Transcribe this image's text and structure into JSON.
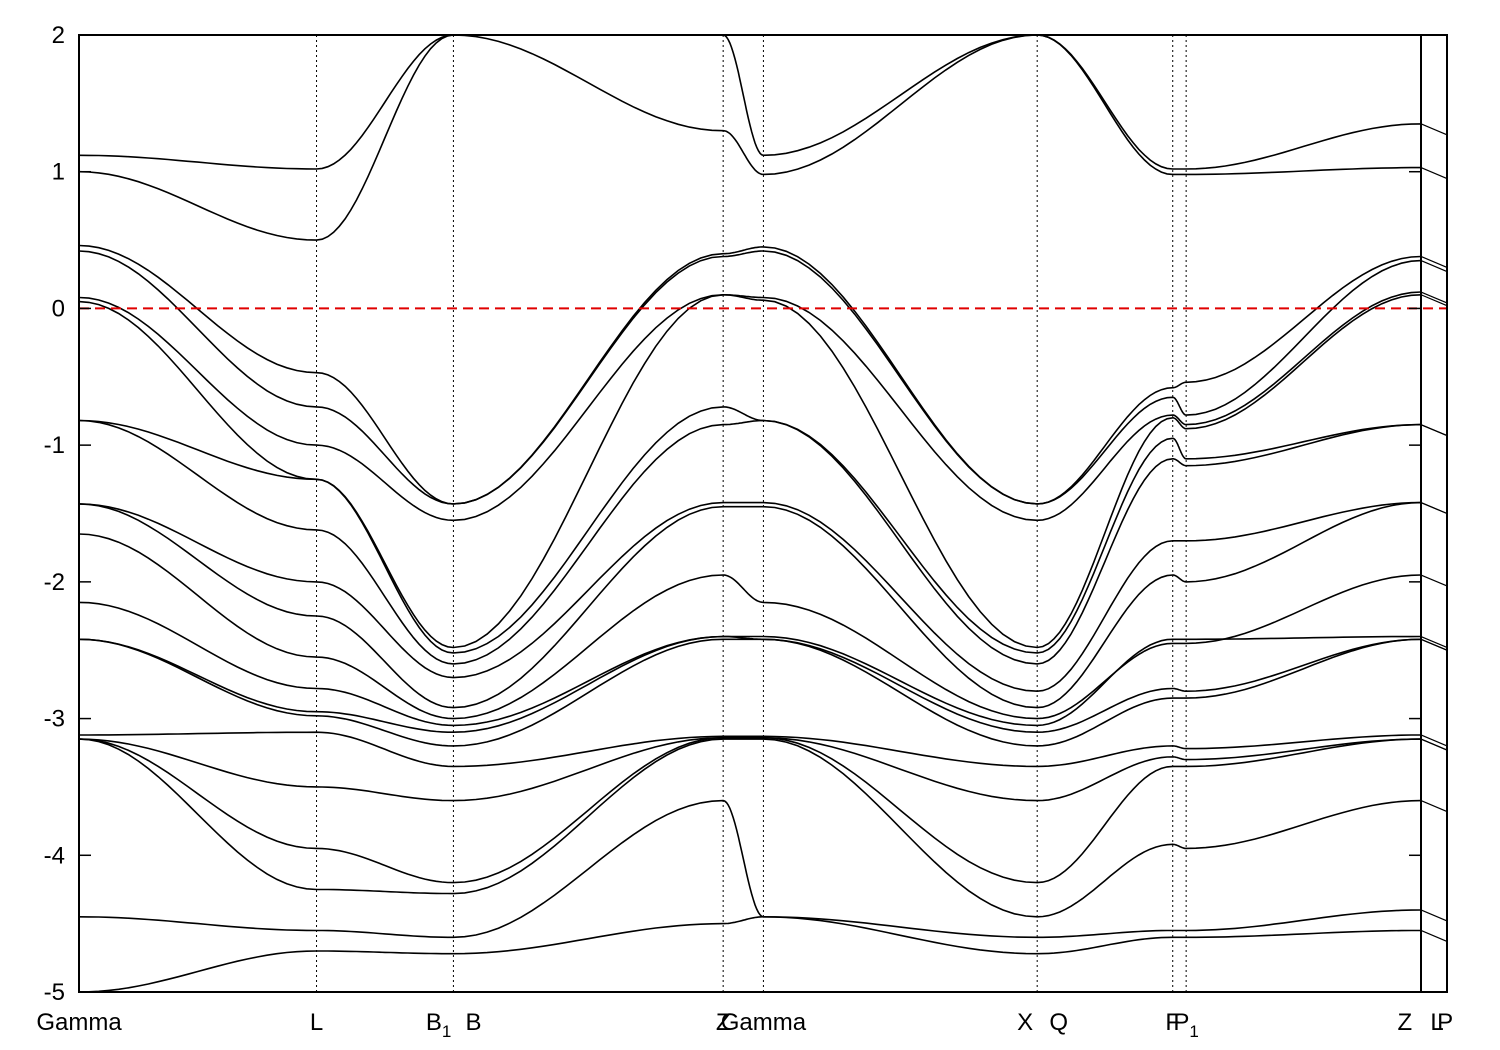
{
  "chart_data": {
    "type": "line",
    "title": "",
    "xlabel": "",
    "ylabel": "",
    "ylim": [
      -5,
      2
    ],
    "yticks": [
      2,
      1,
      0,
      -1,
      -2,
      -3,
      -4,
      -5
    ],
    "fermi_level": 0,
    "fermi_color": "#e00000",
    "band_color": "#000000",
    "kpoints": [
      {
        "label": "Gamma",
        "pos": 0.0
      },
      {
        "label": "L",
        "pos": 0.177
      },
      {
        "label": "B1",
        "label_sub": "1",
        "label_main": "B",
        "pos": 0.279
      },
      {
        "label": "B",
        "pos": 0.279
      },
      {
        "label": "Z",
        "pos": 0.48
      },
      {
        "label": "Gamma",
        "pos": 0.51
      },
      {
        "label": "X",
        "pos": 0.714
      },
      {
        "label": "Q",
        "pos": 0.714
      },
      {
        "label": "F",
        "pos": 0.815
      },
      {
        "label": "P1",
        "label_main": "P",
        "label_sub": "1",
        "pos": 0.825
      },
      {
        "label": "Z",
        "pos": 1.0
      },
      {
        "label": "L",
        "pos": 1.005
      },
      {
        "label": "P",
        "pos": 1.015
      }
    ],
    "xtick_labels": [
      {
        "text": "Gamma",
        "pos": 0.0
      },
      {
        "text": "L",
        "pos": 0.177
      },
      {
        "text": "B",
        "sub": "1",
        "pos": 0.268
      },
      {
        "text": "B",
        "pos": 0.294
      },
      {
        "text": "Z",
        "pos": 0.48
      },
      {
        "text": "Gamma",
        "pos": 0.51
      },
      {
        "text": "X",
        "pos": 0.705
      },
      {
        "text": "Q",
        "pos": 0.73
      },
      {
        "text": "F",
        "pos": 0.815
      },
      {
        "text": "P",
        "sub": "1",
        "pos": 0.825
      },
      {
        "text": "Z",
        "pos": 0.988
      },
      {
        "text": "L",
        "pos": 1.012
      },
      {
        "text": "P",
        "pos": 1.018
      }
    ],
    "x_nodes": [
      0.0,
      0.177,
      0.279,
      0.48,
      0.51,
      0.714,
      0.815,
      0.825,
      1.0
    ],
    "series": [
      {
        "values": [
          1.12,
          1.02,
          2.0,
          2.0,
          1.12,
          2.0,
          1.02,
          1.02,
          1.35
        ]
      },
      {
        "values": [
          1.0,
          0.5,
          2.0,
          1.3,
          0.98,
          2.0,
          0.98,
          0.98,
          1.03
        ]
      },
      {
        "values": [
          0.46,
          -0.47,
          -1.43,
          0.38,
          0.42,
          -1.43,
          -0.58,
          -0.54,
          0.38
        ]
      },
      {
        "values": [
          0.42,
          -0.72,
          -1.43,
          0.4,
          0.45,
          -1.43,
          -0.65,
          -0.78,
          0.35
        ]
      },
      {
        "values": [
          0.08,
          -1.0,
          -1.55,
          0.1,
          0.08,
          -1.55,
          -0.78,
          -0.85,
          0.12
        ]
      },
      {
        "values": [
          0.05,
          -1.25,
          -2.48,
          0.1,
          0.06,
          -2.48,
          -0.8,
          -0.88,
          0.1
        ]
      },
      {
        "values": [
          -0.82,
          -1.25,
          -2.52,
          -0.72,
          -0.82,
          -2.52,
          -0.95,
          -1.1,
          -0.85
        ]
      },
      {
        "values": [
          -0.82,
          -1.62,
          -2.6,
          -0.85,
          -0.82,
          -2.6,
          -1.1,
          -1.15,
          -0.85
        ]
      },
      {
        "values": [
          -1.43,
          -2.0,
          -2.7,
          -1.42,
          -1.42,
          -2.8,
          -1.7,
          -1.7,
          -1.42
        ]
      },
      {
        "values": [
          -1.43,
          -2.25,
          -2.92,
          -1.45,
          -1.45,
          -2.92,
          -1.95,
          -2.0,
          -1.42
        ]
      },
      {
        "values": [
          -1.65,
          -2.55,
          -3.0,
          -1.95,
          -2.15,
          -3.0,
          -2.45,
          -2.45,
          -1.95
        ]
      },
      {
        "values": [
          -2.15,
          -2.78,
          -3.05,
          -2.4,
          -2.4,
          -3.05,
          -2.42,
          -2.42,
          -2.4
        ]
      },
      {
        "values": [
          -2.42,
          -2.95,
          -3.1,
          -2.4,
          -2.42,
          -3.1,
          -2.78,
          -2.8,
          -2.42
        ]
      },
      {
        "values": [
          -2.42,
          -2.98,
          -3.2,
          -2.42,
          -2.42,
          -3.2,
          -2.85,
          -2.85,
          -2.42
        ]
      },
      {
        "values": [
          -3.12,
          -3.1,
          -3.35,
          -3.13,
          -3.13,
          -3.35,
          -3.2,
          -3.22,
          -3.12
        ]
      },
      {
        "values": [
          -3.15,
          -3.5,
          -3.6,
          -3.14,
          -3.14,
          -3.6,
          -3.28,
          -3.3,
          -3.15
        ]
      },
      {
        "values": [
          -3.15,
          -3.95,
          -4.2,
          -3.14,
          -3.14,
          -4.2,
          -3.35,
          -3.35,
          -3.15
        ]
      },
      {
        "values": [
          -3.15,
          -4.25,
          -4.28,
          -3.15,
          -3.15,
          -4.45,
          -3.92,
          -3.95,
          -3.6
        ]
      },
      {
        "values": [
          -4.45,
          -4.55,
          -4.6,
          -3.6,
          -4.45,
          -4.6,
          -4.55,
          -4.55,
          -4.4
        ]
      },
      {
        "values": [
          -5.0,
          -4.7,
          -4.72,
          -4.5,
          -4.45,
          -4.72,
          -4.6,
          -4.6,
          -4.55
        ]
      }
    ]
  }
}
